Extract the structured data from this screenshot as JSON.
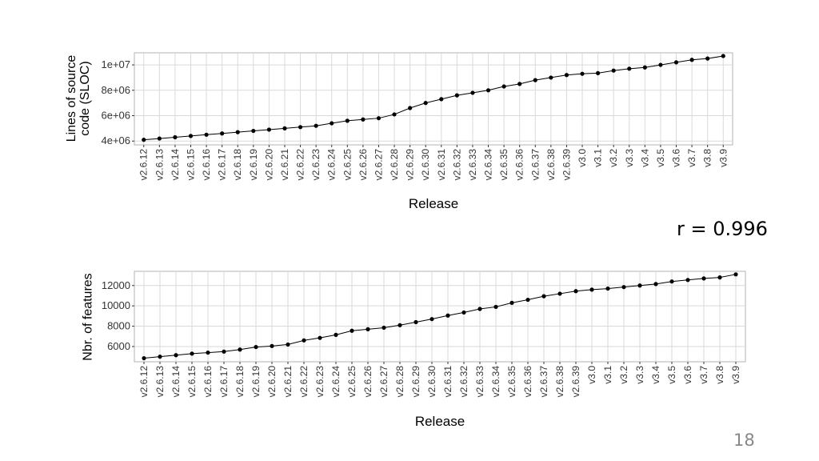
{
  "chart_data": [
    {
      "type": "line",
      "ylabel": "Lines of source code (SLOC)",
      "xlabel": "Release",
      "categories": [
        "v2.6.12",
        "v2.6.13",
        "v2.6.14",
        "v2.6.15",
        "v2.6.16",
        "v2.6.17",
        "v2.6.18",
        "v2.6.19",
        "v2.6.20",
        "v2.6.21",
        "v2.6.22",
        "v2.6.23",
        "v2.6.24",
        "v2.6.25",
        "v2.6.26",
        "v2.6.27",
        "v2.6.28",
        "v2.6.29",
        "v2.6.30",
        "v2.6.31",
        "v2.6.32",
        "v2.6.33",
        "v2.6.34",
        "v2.6.35",
        "v2.6.36",
        "v2.6.37",
        "v2.6.38",
        "v2.6.39",
        "v3.0",
        "v3.1",
        "v3.2",
        "v3.3",
        "v3.4",
        "v3.5",
        "v3.6",
        "v3.7",
        "v3.8",
        "v3.9"
      ],
      "values": [
        4100000,
        4200000,
        4300000,
        4400000,
        4500000,
        4600000,
        4700000,
        4800000,
        4900000,
        5000000,
        5100000,
        5200000,
        5400000,
        5600000,
        5700000,
        5800000,
        6100000,
        6600000,
        7000000,
        7300000,
        7600000,
        7800000,
        8000000,
        8300000,
        8500000,
        8800000,
        9000000,
        9200000,
        9300000,
        9350000,
        9550000,
        9700000,
        9800000,
        10000000,
        10200000,
        10400000,
        10500000,
        10700000
      ],
      "color": "#000000",
      "ylim": [
        3700000,
        10950000
      ],
      "yticks": [
        {
          "value": 4000000,
          "label": "4e+06"
        },
        {
          "value": 6000000,
          "label": "6e+06"
        },
        {
          "value": 8000000,
          "label": "8e+06"
        },
        {
          "value": 10000000,
          "label": "1e+07"
        }
      ],
      "grid": true
    },
    {
      "type": "line",
      "ylabel": "Nbr. of features",
      "xlabel": "Release",
      "categories": [
        "v2.6.12",
        "v2.6.13",
        "v2.6.14",
        "v2.6.15",
        "v2.6.16",
        "v2.6.17",
        "v2.6.18",
        "v2.6.19",
        "v2.6.20",
        "v2.6.21",
        "v2.6.22",
        "v2.6.23",
        "v2.6.24",
        "v2.6.25",
        "v2.6.26",
        "v2.6.27",
        "v2.6.28",
        "v2.6.29",
        "v2.6.30",
        "v2.6.31",
        "v2.6.32",
        "v2.6.33",
        "v2.6.34",
        "v2.6.35",
        "v2.6.36",
        "v2.6.37",
        "v2.6.38",
        "v2.6.39",
        "v3.0",
        "v3.1",
        "v3.2",
        "v3.3",
        "v3.4",
        "v3.5",
        "v3.6",
        "v3.7",
        "v3.8",
        "v3.9"
      ],
      "values": [
        4850,
        5000,
        5150,
        5300,
        5400,
        5500,
        5700,
        5950,
        6050,
        6200,
        6600,
        6850,
        7150,
        7550,
        7700,
        7850,
        8100,
        8400,
        8700,
        9050,
        9350,
        9700,
        9900,
        10300,
        10600,
        10950,
        11200,
        11450,
        11600,
        11700,
        11850,
        12000,
        12150,
        12400,
        12550,
        12700,
        12800,
        13100
      ],
      "color": "#000000",
      "ylim": [
        4500,
        13400
      ],
      "yticks": [
        6000,
        8000,
        10000,
        12000
      ],
      "grid": true
    }
  ],
  "annotation": "r = 0.996",
  "page_number": "18"
}
